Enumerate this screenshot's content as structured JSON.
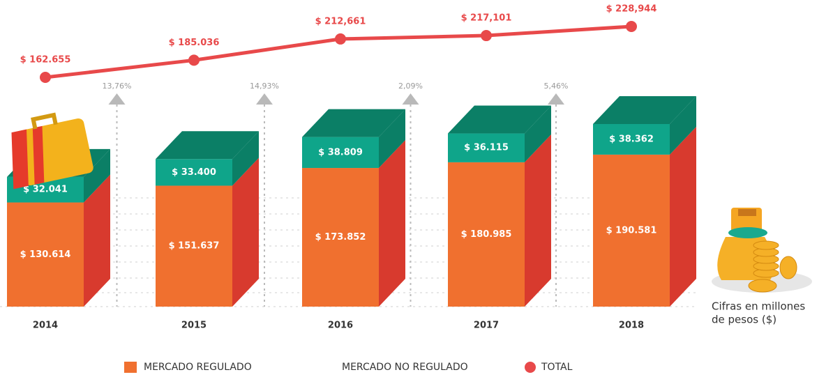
{
  "chart_data": {
    "type": "bar3d",
    "categories": [
      "2014",
      "2015",
      "2016",
      "2017",
      "2018"
    ],
    "series": [
      {
        "name": "MERCADO REGULADO",
        "color": "#f0702f",
        "side_color": "#d83a2e",
        "values": [
          130614,
          151637,
          173852,
          180985,
          190581
        ],
        "value_labels": [
          "$ 130.614",
          "$ 151.637",
          "$ 173.852",
          "$ 180.985",
          "$ 190.581"
        ]
      },
      {
        "name": "MERCADO NO REGULADO",
        "color": "#0fa58a",
        "side_color": "#0b7f66",
        "values": [
          32041,
          33400,
          38809,
          36115,
          38362
        ],
        "value_labels": [
          "$ 32.041",
          "$ 33.400",
          "$ 38.809",
          "$ 36.115",
          "$ 38.362"
        ]
      },
      {
        "name": "TOTAL",
        "type": "line",
        "color": "#e8494a",
        "values": [
          162655,
          185036,
          212661,
          217101,
          228944
        ],
        "value_labels": [
          "$ 162.655",
          "$ 185.036",
          "$ 212,661",
          "$ 217,101",
          "$ 228,944"
        ]
      }
    ],
    "growth": {
      "values": [
        13.76,
        14.93,
        2.09,
        5.46
      ],
      "value_labels": [
        "13,76%",
        "14,93%",
        "2,09%",
        "5,46%"
      ],
      "color": "#b9b9b9"
    },
    "note": [
      "Cifras en millones",
      "de pesos ($)"
    ]
  }
}
